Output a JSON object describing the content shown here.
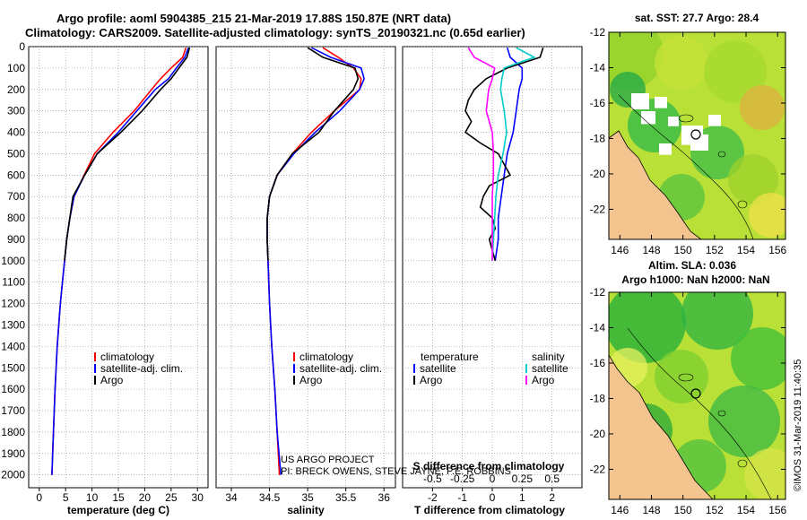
{
  "header": {
    "line1": "Argo profile: aoml 5904385_215 21-Mar-2019 17.88S 150.87E (NRT data)",
    "line2": "Climatology: CARS2009. Satellite-adjusted climatology: synTS_20190321.nc (0.65d earlier)"
  },
  "colors": {
    "climatology": "#ff0000",
    "satellite": "#0000ff",
    "argo": "#000000",
    "sat_salinity": "#00cccc",
    "argo_salinity": "#ff00ff"
  },
  "depth_axis": {
    "ticks": [
      "0",
      "100",
      "200",
      "300",
      "400",
      "500",
      "600",
      "700",
      "800",
      "900",
      "1000",
      "1100",
      "1200",
      "1300",
      "1400",
      "1500",
      "1600",
      "1700",
      "1800",
      "1900",
      "2000"
    ],
    "min": 0,
    "max": 2060
  },
  "charts": {
    "temperature": {
      "xlabel": "temperature (deg C)",
      "xticks": [
        "0",
        "5",
        "10",
        "15",
        "20",
        "25",
        "30"
      ],
      "xlim": [
        -2,
        32
      ],
      "legend": [
        "climatology",
        "satellite-adj. clim.",
        "Argo"
      ]
    },
    "salinity": {
      "xlabel": "salinity",
      "xticks": [
        "34",
        "34.5",
        "35",
        "35.5",
        "36"
      ],
      "xlim": [
        33.8,
        36.15
      ],
      "legend": [
        "climatology",
        "satellite-adj. clim.",
        "Argo"
      ],
      "credit1": "US ARGO PROJECT",
      "credit2": "PI: BRECK OWENS, STEVE JAYNE, P.E. ROBBINS"
    },
    "difference": {
      "xlabel": "T difference from climatology",
      "xticks": [
        "-2",
        "-1",
        "0",
        "1",
        "2"
      ],
      "xlim": [
        -3,
        3
      ],
      "s_label": "S difference from climatology",
      "s_ticks": [
        "-0.5",
        "-0.25",
        "0",
        "0.25",
        "0.5"
      ],
      "legend_t_title": "temperature",
      "legend_s_title": "salinity",
      "legend_t": [
        "satellite",
        "Argo"
      ],
      "legend_s": [
        "satellite",
        "Argo"
      ]
    }
  },
  "maps": {
    "sst_title": "sat. SST: 27.7 Argo: 28.4",
    "sla_title1": "Altim. SLA: 0.036",
    "sla_title2": "Argo h1000: NaN h2000: NaN",
    "lat_ticks": [
      "-12",
      "-14",
      "-16",
      "-18",
      "-20",
      "-22"
    ],
    "lon_ticks": [
      "146",
      "148",
      "150",
      "152",
      "154",
      "156"
    ],
    "watermark": "©IMOS 31-Mar-2019 11:40:35"
  },
  "chart_data": [
    {
      "type": "line",
      "title": "temperature",
      "xlabel": "temperature (deg C)",
      "ylabel": "depth",
      "ylim": [
        0,
        2060
      ],
      "xlim": [
        -2,
        32
      ],
      "series": [
        {
          "name": "climatology",
          "depth": [
            5,
            50,
            100,
            150,
            200,
            300,
            400,
            500,
            600,
            700,
            800,
            900,
            1000,
            1200,
            1400,
            1600,
            1800,
            2000
          ],
          "values": [
            27.8,
            27.2,
            25,
            23,
            21.3,
            18,
            14,
            10.5,
            8.5,
            6.6,
            5.8,
            5.2,
            4.8,
            4.0,
            3.4,
            3.0,
            2.7,
            2.4
          ]
        },
        {
          "name": "satellite-adj. clim.",
          "depth": [
            5,
            50,
            100,
            150,
            200,
            300,
            400,
            500,
            600,
            700,
            800,
            900,
            1000,
            1200,
            1400,
            1600,
            1800,
            2000
          ],
          "values": [
            28.3,
            27.6,
            26,
            24.5,
            22,
            18.5,
            15,
            11,
            8.6,
            6.6,
            5.8,
            5.2,
            4.8,
            4.0,
            3.4,
            3.0,
            2.7,
            2.4
          ]
        },
        {
          "name": "Argo",
          "depth": [
            5,
            50,
            100,
            150,
            200,
            300,
            400,
            500,
            600,
            700,
            750,
            800,
            900,
            1000
          ],
          "values": [
            28.5,
            28,
            26.5,
            25,
            23,
            19.5,
            15.5,
            11,
            8.6,
            6.4,
            6.1,
            5.8,
            5.2,
            4.8
          ]
        }
      ]
    },
    {
      "type": "line",
      "title": "salinity",
      "xlabel": "salinity",
      "ylabel": "depth",
      "ylim": [
        0,
        2060
      ],
      "xlim": [
        33.8,
        36.15
      ],
      "series": [
        {
          "name": "climatology",
          "depth": [
            5,
            50,
            100,
            150,
            200,
            300,
            400,
            500,
            600,
            700,
            800,
            900,
            1000,
            1200,
            1400,
            1600,
            1800,
            2000
          ],
          "values": [
            35.2,
            35.4,
            35.6,
            35.7,
            35.68,
            35.35,
            35.05,
            34.8,
            34.6,
            34.5,
            34.47,
            34.47,
            34.48,
            34.5,
            34.53,
            34.57,
            34.6,
            34.63
          ]
        },
        {
          "name": "satellite-adj. clim.",
          "depth": [
            5,
            50,
            100,
            150,
            200,
            300,
            400,
            500,
            600,
            700,
            800,
            900,
            1000,
            1200,
            1400,
            1600,
            1800,
            2000
          ],
          "values": [
            35.05,
            35.3,
            35.7,
            35.74,
            35.68,
            35.42,
            35.1,
            34.82,
            34.6,
            34.5,
            34.47,
            34.47,
            34.48,
            34.5,
            34.53,
            34.57,
            34.6,
            34.65
          ]
        },
        {
          "name": "Argo",
          "depth": [
            5,
            50,
            100,
            150,
            200,
            300,
            400,
            500,
            600,
            700,
            800,
            900,
            1000
          ],
          "values": [
            35.0,
            35.2,
            35.62,
            35.66,
            35.6,
            35.35,
            35.15,
            34.8,
            34.6,
            34.5,
            34.47,
            34.47,
            34.48
          ]
        }
      ]
    },
    {
      "type": "line",
      "title": "difference from climatology",
      "xlabel": "T difference from climatology",
      "ylabel": "depth",
      "ylim": [
        0,
        2060
      ],
      "xlim": [
        -3,
        3
      ],
      "s_xlim": [
        -0.75,
        0.75
      ],
      "series": [
        {
          "name": "T satellite",
          "depth": [
            5,
            50,
            100,
            150,
            200,
            300,
            400,
            500,
            600,
            700,
            800,
            900,
            1000
          ],
          "values": [
            0.5,
            0.6,
            1.0,
            1.0,
            0.9,
            0.8,
            0.7,
            0.5,
            0.4,
            0.3,
            0.2,
            0.2,
            0.1
          ]
        },
        {
          "name": "T Argo",
          "depth": [
            5,
            50,
            100,
            150,
            200,
            250,
            300,
            350,
            400,
            450,
            500,
            550,
            600,
            650,
            700,
            750,
            800,
            850,
            900,
            950,
            1000
          ],
          "values": [
            1.7,
            1.6,
            0.5,
            -0.2,
            -0.6,
            -0.8,
            -0.9,
            -0.7,
            -0.9,
            -0.4,
            0.2,
            0.4,
            0.6,
            -0.1,
            -0.3,
            -0.4,
            0.0,
            0.1,
            -0.1,
            0.0,
            0.1
          ]
        },
        {
          "name": "S satellite",
          "depth": [
            5,
            50,
            100,
            150,
            200,
            300,
            400,
            500,
            600,
            700,
            800,
            900,
            1000
          ],
          "values": [
            0.2,
            0.35,
            0.1,
            0.08,
            0.07,
            0.1,
            0.12,
            0.09,
            0.05,
            0.03,
            0.02,
            0.01,
            0.0
          ]
        },
        {
          "name": "S Argo",
          "depth": [
            5,
            50,
            100,
            150,
            200,
            300,
            400,
            500,
            600,
            700,
            800,
            900,
            1000
          ],
          "values": [
            -0.2,
            -0.15,
            0.02,
            0.0,
            -0.03,
            -0.05,
            0.0,
            0.01,
            0.01,
            0.0,
            0.0,
            0.0,
            0.0
          ]
        }
      ]
    }
  ]
}
